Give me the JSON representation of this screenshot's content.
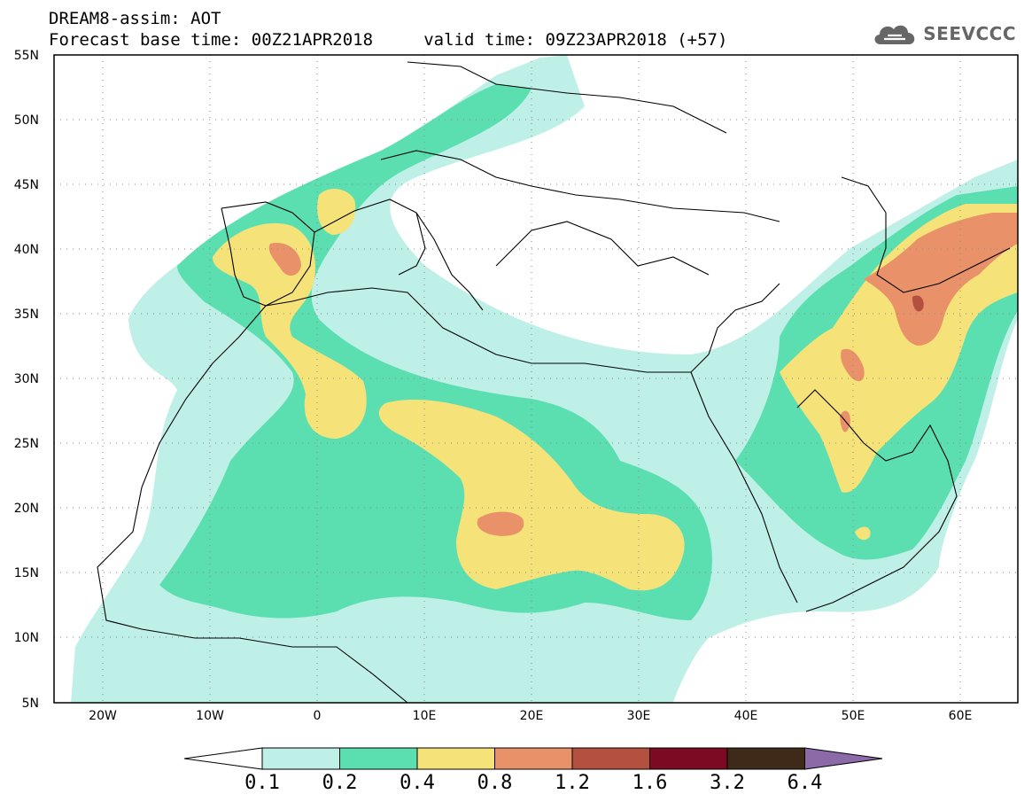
{
  "title": {
    "line1": "DREAM8-assim: AOT",
    "line2": "Forecast base time: 00Z21APR2018     valid time: 09Z23APR2018 (+57)"
  },
  "logo": {
    "text": "SEEVCCC",
    "icon": "cloud-icon"
  },
  "map": {
    "lat_range": [
      5,
      55
    ],
    "lon_range": [
      -25,
      65
    ],
    "lat_labels": [
      "55N",
      "50N",
      "45N",
      "40N",
      "35N",
      "30N",
      "25N",
      "20N",
      "15N",
      "10N",
      "5N"
    ],
    "lon_labels": [
      "20W",
      "10W",
      "0",
      "10E",
      "20E",
      "30E",
      "40E",
      "50E",
      "60E"
    ],
    "grid": "dotted",
    "variable": "AOT"
  },
  "colorbar": {
    "labels": [
      "0.1",
      "0.2",
      "0.4",
      "0.8",
      "1.2",
      "1.6",
      "3.2",
      "6.4"
    ],
    "colors": [
      "#ffffff",
      "#bff0e8",
      "#5cdfb0",
      "#f5e37a",
      "#e9926a",
      "#b3503f",
      "#7b0a22",
      "#3f2a1a",
      "#8c6aa8"
    ]
  }
}
